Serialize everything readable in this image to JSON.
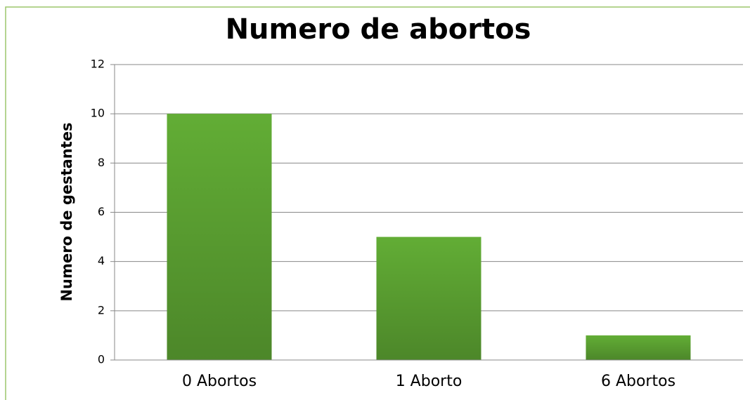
{
  "chart_data": {
    "type": "bar",
    "title": "Numero de abortos",
    "y_label": "Numero de gestantes",
    "categories": [
      "0 Abortos",
      "1 Aborto",
      "6 Abortos"
    ],
    "values": [
      10,
      5,
      1
    ],
    "color": "#62ad35",
    "ylim": [
      0,
      12
    ],
    "yticks": [
      0,
      2,
      4,
      6,
      8,
      10,
      12
    ],
    "grid": true
  }
}
